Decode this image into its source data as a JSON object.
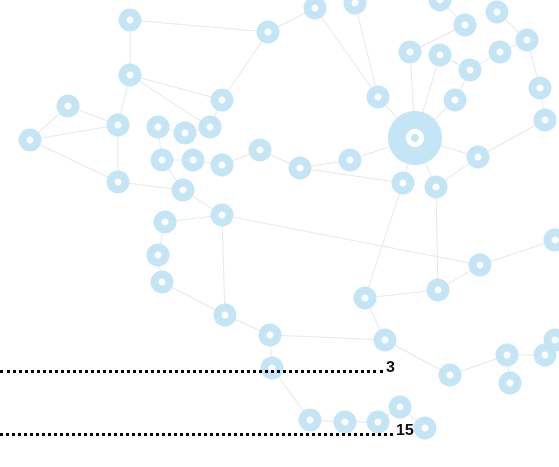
{
  "toc": {
    "entries": [
      {
        "page": "3"
      },
      {
        "page": "15"
      }
    ]
  }
}
